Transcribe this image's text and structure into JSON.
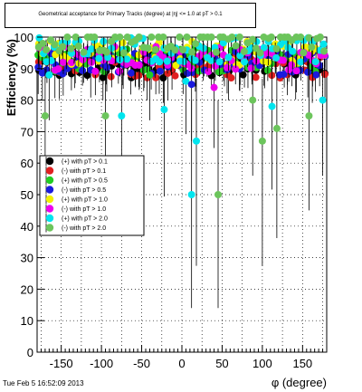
{
  "chart_data": {
    "type": "scatter",
    "title": "Geometrical acceptance for Primary Tracks (degree) at |η| <= 1.0 at pT > 0.1",
    "xlabel": "φ (degree)",
    "ylabel": "Efficiency (%)",
    "xlim": [
      -180,
      180
    ],
    "ylim": [
      0,
      100
    ],
    "x_ticks": [
      -150,
      -100,
      -50,
      0,
      50,
      100,
      150
    ],
    "y_ticks": [
      0,
      10,
      20,
      30,
      40,
      50,
      60,
      70,
      80,
      90,
      100
    ],
    "grid": true,
    "legend_position": "left-middle",
    "series": [
      {
        "name": "(+) with pT > 0.1",
        "color": "#000000",
        "level": 91
      },
      {
        "name": "(-) with pT > 0.1",
        "color": "#e02020",
        "level": 91
      },
      {
        "name": "(+) with pT > 0.5",
        "color": "#22cc22",
        "level": 93
      },
      {
        "name": "(-) with pT > 0.5",
        "color": "#1a1add",
        "level": 92
      },
      {
        "name": "(+) with pT > 1.0",
        "color": "#f2f200",
        "level": 95
      },
      {
        "name": "(-) with pT > 1.0",
        "color": "#ee00ee",
        "level": 93
      },
      {
        "name": "(+) with pT > 2.0",
        "color": "#00e5ee",
        "level": 96
      },
      {
        "name": "(-) with pT > 2.0",
        "color": "#6cc55c",
        "level": 99
      }
    ],
    "outliers": [
      {
        "series": 7,
        "x": -170,
        "y": 75
      },
      {
        "series": 7,
        "x": -95,
        "y": 75
      },
      {
        "series": 6,
        "x": -75,
        "y": 75
      },
      {
        "series": 6,
        "x": -22,
        "y": 77
      },
      {
        "series": 7,
        "x": 88,
        "y": 80
      },
      {
        "series": 7,
        "x": 100,
        "y": 67
      },
      {
        "series": 7,
        "x": 118,
        "y": 71
      },
      {
        "series": 7,
        "x": 158,
        "y": 75
      },
      {
        "series": 6,
        "x": 175,
        "y": 80
      },
      {
        "series": 6,
        "x": 112,
        "y": 78
      },
      {
        "series": 6,
        "x": 12,
        "y": 50
      },
      {
        "series": 6,
        "x": 18,
        "y": 67
      },
      {
        "series": 7,
        "x": 45,
        "y": 50
      },
      {
        "series": 5,
        "x": 40,
        "y": 84
      },
      {
        "series": 6,
        "x": 5,
        "y": 86
      },
      {
        "series": 3,
        "x": 12,
        "y": 85
      },
      {
        "series": 6,
        "x": -165,
        "y": 88
      },
      {
        "series": 2,
        "x": -40,
        "y": 88
      }
    ]
  },
  "footer": {
    "timestamp": "Tue Feb  5 16:52:09 2013"
  }
}
